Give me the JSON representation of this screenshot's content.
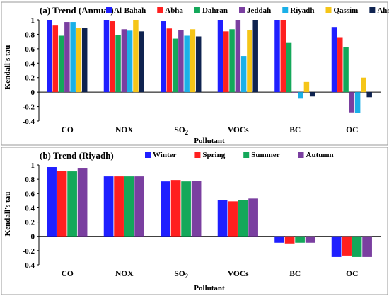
{
  "chart_data": [
    {
      "type": "bar",
      "title": "(a) Trend (Annual)",
      "xlabel": "Pollutant",
      "ylabel": "Kendall's tau",
      "ylim": [
        -0.4,
        1
      ],
      "yticks": [
        "-0.4",
        "-0.2",
        "0",
        "0.2",
        "0.4",
        "0.6",
        "0.8",
        "1"
      ],
      "categories": [
        "CO",
        "NOX",
        "SO2",
        "VOCs",
        "BC",
        "OC"
      ],
      "legend_position": "top",
      "grid": false,
      "series": [
        {
          "name": "Al-Bahah",
          "color": "#1f1fff",
          "values": [
            1.0,
            1.0,
            0.98,
            1.0,
            1.0,
            0.9
          ]
        },
        {
          "name": "Abha",
          "color": "#ff1f1f",
          "values": [
            0.92,
            0.98,
            0.88,
            0.84,
            1.0,
            0.76
          ]
        },
        {
          "name": "Dahran",
          "color": "#14a85a",
          "values": [
            0.78,
            0.79,
            0.74,
            0.87,
            0.68,
            0.62
          ]
        },
        {
          "name": "Jeddah",
          "color": "#7a3fa0",
          "values": [
            0.97,
            0.87,
            0.86,
            1.0,
            0.0,
            -0.28
          ]
        },
        {
          "name": "Riyadh",
          "color": "#1ab0e8",
          "values": [
            0.97,
            0.85,
            0.78,
            0.5,
            -0.09,
            -0.29
          ]
        },
        {
          "name": "Qassim",
          "color": "#f5c518",
          "values": [
            0.89,
            1.0,
            0.87,
            0.86,
            0.14,
            0.2
          ]
        },
        {
          "name": "Ahsa",
          "color": "#0f2350",
          "values": [
            0.89,
            0.84,
            0.77,
            1.0,
            -0.06,
            -0.07
          ]
        }
      ]
    },
    {
      "type": "bar",
      "title": "(b) Trend (Riyadh)",
      "xlabel": "Pollutant",
      "ylabel": "Kendall's tau",
      "ylim": [
        -0.4,
        1
      ],
      "yticks": [
        "-0.4",
        "-0.2",
        "0",
        "0.2",
        "0.4",
        "0.6",
        "0.8",
        "1"
      ],
      "categories": [
        "CO",
        "NOX",
        "SO2",
        "VOCs",
        "BC",
        "OC"
      ],
      "legend_position": "top",
      "grid": false,
      "series": [
        {
          "name": "Winter",
          "color": "#1f1fff",
          "values": [
            0.97,
            0.84,
            0.77,
            0.51,
            -0.09,
            -0.29
          ]
        },
        {
          "name": "Spring",
          "color": "#ff1f1f",
          "values": [
            0.92,
            0.84,
            0.79,
            0.49,
            -0.1,
            -0.27
          ]
        },
        {
          "name": "Summer",
          "color": "#14a85a",
          "values": [
            0.91,
            0.84,
            0.77,
            0.51,
            -0.09,
            -0.29
          ]
        },
        {
          "name": "Autumn",
          "color": "#7a3fa0",
          "values": [
            0.96,
            0.84,
            0.78,
            0.53,
            -0.09,
            -0.29
          ]
        }
      ]
    }
  ]
}
